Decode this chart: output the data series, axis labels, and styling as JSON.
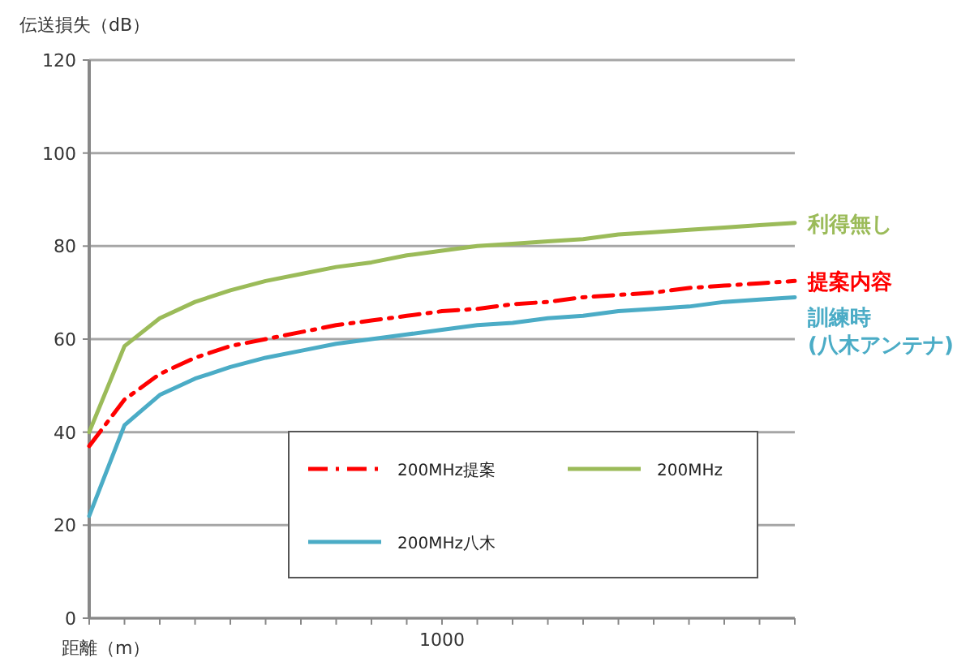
{
  "chart_data": {
    "type": "line",
    "ylabel": "伝送損失（dB）",
    "xlabel": "距離（m）",
    "categories": [
      null,
      null,
      null,
      null,
      null,
      null,
      null,
      null,
      null,
      null,
      null,
      null,
      null,
      null,
      null,
      null,
      null,
      null,
      null,
      null,
      null
    ],
    "ylim": [
      0,
      120
    ],
    "yticks": [
      0,
      20,
      40,
      60,
      80,
      100,
      120
    ],
    "grid": "y",
    "legend": "bottom",
    "series": [
      {
        "name": "200MHz提案",
        "color": "#ff0000",
        "line_style": "dashed",
        "values": [
          37,
          47,
          52.5,
          56,
          58.5,
          60,
          61.5,
          63,
          64,
          65,
          66,
          66.5,
          67.5,
          68,
          69,
          69.5,
          70,
          71,
          71.5,
          72,
          72.5
        ]
      },
      {
        "name": "200MHz",
        "color": "#9bbb59",
        "line_style": "solid",
        "values": [
          40,
          58.5,
          64.5,
          68,
          70.5,
          72.5,
          74,
          75.5,
          76.5,
          78,
          79,
          80,
          80.5,
          81,
          81.5,
          82.5,
          83,
          83.5,
          84,
          84.5,
          85
        ]
      },
      {
        "name": "200MHz八木",
        "color": "#4bacc6",
        "line_style": "solid",
        "values": [
          22,
          41.5,
          48,
          51.5,
          54,
          56,
          57.5,
          59,
          60,
          61,
          62,
          63,
          63.5,
          64.5,
          65,
          66,
          66.5,
          67,
          68,
          68.5,
          69
        ]
      }
    ],
    "annotations": [
      "提案内容",
      "利得無し",
      "訓練時\n(八木アンテナ)",
      "1000"
    ]
  }
}
